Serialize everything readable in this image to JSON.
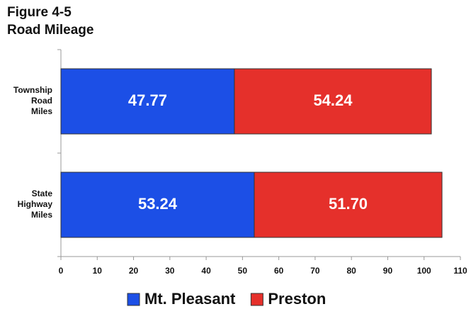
{
  "chart_data": {
    "type": "stacked_barh",
    "title": [
      "Figure 4-5",
      "Road Mileage"
    ],
    "categories": [
      "Township Road Miles",
      "State Highway Miles"
    ],
    "series": [
      {
        "name": "Mt. Pleasant",
        "color": "#1c4fe6",
        "values": [
          47.77,
          53.24
        ],
        "value_labels": [
          "47.77",
          "53.24"
        ]
      },
      {
        "name": "Preston",
        "color": "#e5302b",
        "values": [
          54.24,
          51.7
        ],
        "value_labels": [
          "54.24",
          "51.70"
        ]
      }
    ],
    "xlim": [
      0,
      110
    ],
    "xticks": [
      0,
      10,
      20,
      30,
      40,
      50,
      60,
      70,
      80,
      90,
      100,
      110
    ]
  }
}
